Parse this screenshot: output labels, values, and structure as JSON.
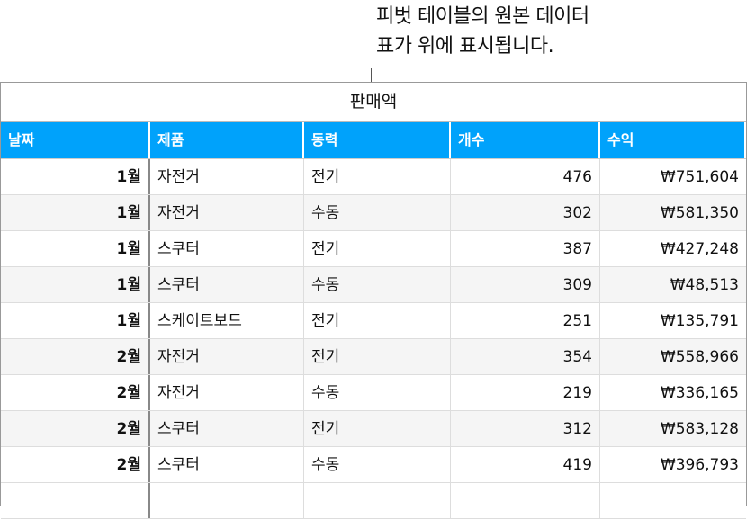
{
  "callout": {
    "line1": "피벗 테이블의 원본 데이터",
    "line2": "표가 위에 표시됩니다."
  },
  "table": {
    "title": "판매액",
    "headers": [
      "날짜",
      "제품",
      "동력",
      "개수",
      "수익"
    ],
    "rows": [
      [
        "1월",
        "자전거",
        "전기",
        "476",
        "₩751,604"
      ],
      [
        "1월",
        "자전거",
        "수동",
        "302",
        "₩581,350"
      ],
      [
        "1월",
        "스쿠터",
        "전기",
        "387",
        "₩427,248"
      ],
      [
        "1월",
        "스쿠터",
        "수동",
        "309",
        "₩48,513"
      ],
      [
        "1월",
        "스케이트보드",
        "전기",
        "251",
        "₩135,791"
      ],
      [
        "2월",
        "자전거",
        "전기",
        "354",
        "₩558,966"
      ],
      [
        "2월",
        "자전거",
        "수동",
        "219",
        "₩336,165"
      ],
      [
        "2월",
        "스쿠터",
        "전기",
        "312",
        "₩583,128"
      ],
      [
        "2월",
        "스쿠터",
        "수동",
        "419",
        "₩396,793"
      ]
    ]
  },
  "colors": {
    "header": "#00a2fb"
  }
}
